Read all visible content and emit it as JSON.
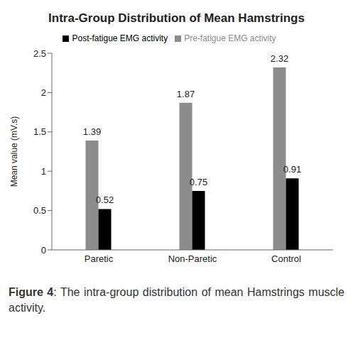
{
  "chart_data": {
    "type": "bar",
    "title": "Intra-Group Distribution of Mean Hamstrings",
    "y_label": "Mean value (mV.s)",
    "caption": "Figure 4: The intra-group distribution of mean Hamstrings muscle activity.",
    "categories": [
      "Paretic",
      "Non-Paretic",
      "Control"
    ],
    "series": [
      {
        "name": "Pre-fatigue EMG activity",
        "color": "#8c8c8c",
        "values": [
          1.39,
          1.87,
          2.32
        ]
      },
      {
        "name": "Post-fatigue EMG activity",
        "color": "#000000",
        "values": [
          0.52,
          0.75,
          0.91
        ]
      }
    ],
    "ylim": [
      0,
      2.5
    ],
    "yticks": [
      0,
      0.5,
      1,
      1.5,
      2,
      2.5
    ],
    "grid": false,
    "legend": "top",
    "data_labels": true
  }
}
